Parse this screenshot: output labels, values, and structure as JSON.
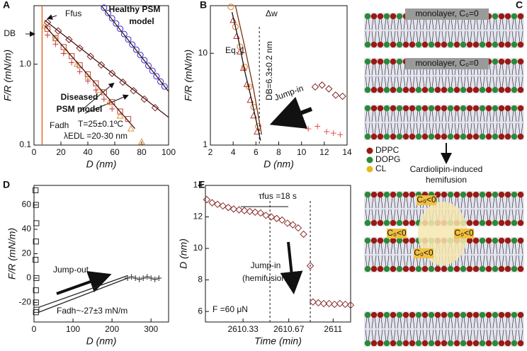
{
  "chart_data": [
    {
      "type": "scatter",
      "label": "A",
      "xlabel": "D (nm)",
      "ylabel": "F/R (mN/m)",
      "ylog": true,
      "xlim": [
        0,
        100
      ],
      "xticks": [
        0,
        20,
        40,
        60,
        80,
        100
      ],
      "ylim": [
        0.1,
        5.3
      ],
      "yticks": [
        {
          "value": 0.1,
          "label": "0.1"
        },
        {
          "value": 1,
          "label": "1.0"
        }
      ],
      "vlines": [],
      "annotations": [
        "Ffus",
        "DB",
        "Healthy PSM",
        "model",
        "Diseased",
        "PSM model",
        "Fadh",
        "T=25±0.1ºC",
        "λEDL =20-30 nm"
      ],
      "series": [
        {
          "marker": "circle",
          "color": "#2a2ad0",
          "x": [
            52,
            55,
            58,
            61,
            64,
            67,
            70,
            73,
            76,
            79,
            82,
            85,
            88,
            91,
            94,
            97
          ],
          "values": [
            5.0,
            4.3,
            3.7,
            3.19,
            2.74,
            2.36,
            2.03,
            1.75,
            1.51,
            1.3,
            1.12,
            0.96,
            0.83,
            0.71,
            0.61,
            0.53
          ]
        },
        {
          "marker": "diamond",
          "color": "#7a2020",
          "x": [
            10,
            18,
            26,
            34,
            42,
            50,
            58,
            66,
            74,
            82,
            90
          ],
          "values": [
            3.29,
            2.58,
            2.02,
            1.58,
            1.25,
            0.98,
            0.77,
            0.6,
            0.47,
            0.37,
            0.29
          ]
        },
        {
          "marker": "square",
          "color": "#b8452a",
          "x": [
            10,
            16,
            22,
            28,
            34,
            40,
            46,
            52,
            58,
            64,
            70
          ],
          "values": [
            2.74,
            2.11,
            1.63,
            1.26,
            0.97,
            0.75,
            0.58,
            0.45,
            0.34,
            0.26,
            0.21
          ]
        },
        {
          "marker": "triangle",
          "color": "#e0903a",
          "x": [
            8,
            16,
            24,
            32,
            40,
            48,
            56,
            64,
            72,
            80
          ],
          "values": [
            3.0,
            2.08,
            1.45,
            1.01,
            0.7,
            0.48,
            0.34,
            0.23,
            0.16,
            0.11
          ]
        },
        {
          "marker": "cross",
          "color": "#c83a3a",
          "x": [
            10,
            16,
            22,
            28,
            34,
            40,
            46,
            52,
            58
          ],
          "values": [
            2.29,
            1.77,
            1.36,
            1.05,
            0.81,
            0.62,
            0.48,
            0.37,
            0.28
          ]
        },
        {
          "style": "line",
          "color": "#4a1010",
          "x": [
            8,
            100
          ],
          "values": [
            3.5,
            0.22
          ]
        },
        {
          "style": "line",
          "color": "#4a1010",
          "x": [
            8,
            75
          ],
          "values": [
            3.0,
            0.16
          ]
        },
        {
          "style": "line",
          "color": "#4a1010",
          "x": [
            50,
            100
          ],
          "values": [
            5.3,
            0.46
          ]
        },
        {
          "style": "line",
          "color": "#e05a10",
          "x": [
            6,
            6
          ],
          "values": [
            5.3,
            0.1
          ]
        }
      ]
    },
    {
      "type": "scatter",
      "label": "B",
      "xlabel": "D (nm)",
      "ylabel": "F/R (mN/m)",
      "ylog": true,
      "xlim": [
        2,
        14
      ],
      "xticks": [
        2,
        4,
        6,
        8,
        10,
        12,
        14
      ],
      "ylim": [
        1,
        33
      ],
      "yticks": [
        1,
        10
      ],
      "vlines": [
        6.3
      ],
      "annotations": [
        "Δw",
        "Eq. 1",
        "DB=6.3±0.2 nm",
        "Jump-in"
      ],
      "series": [
        {
          "marker": "triangle",
          "color": "#c03030",
          "x": [
            4.0,
            4.3,
            4.6,
            4.9,
            5.2,
            5.5,
            5.8,
            6.1
          ],
          "values": [
            22.97,
            15.4,
            10.4,
            6.9,
            4.6,
            3.1,
            2.1,
            1.4
          ]
        },
        {
          "marker": "circle",
          "color": "#e07a20",
          "x": [
            3.8,
            4.2,
            4.6,
            5.0,
            5.4,
            5.8,
            6.2
          ],
          "values": [
            32,
            19.4,
            11.8,
            7.1,
            4.3,
            2.6,
            1.6
          ]
        },
        {
          "marker": "diamond",
          "color": "#7a2020",
          "x": [
            11.2,
            11.8,
            12.4,
            13.0,
            13.6
          ],
          "values": [
            4.3,
            4.5,
            4.1,
            3.5,
            3.4
          ]
        },
        {
          "marker": "cross",
          "color": "#e05050",
          "x": [
            10.6,
            11.4,
            12.2,
            12.8,
            13.4
          ],
          "values": [
            1.5,
            1.6,
            1.4,
            1.35,
            1.3
          ]
        },
        {
          "style": "line",
          "color": "#111111",
          "x": [
            3.9,
            4.5,
            5.0,
            5.5,
            6.0,
            6.4
          ],
          "values": [
            28.1,
            13.4,
            6.5,
            3.6,
            1.9,
            1.12
          ]
        },
        {
          "style": "line",
          "color": "#7a3010",
          "x": [
            4.2,
            5.0,
            5.8,
            6.5
          ],
          "values": [
            33,
            12,
            4,
            1.3
          ]
        }
      ]
    },
    {
      "type": "scatter",
      "label": "D",
      "xlabel": "D (nm)",
      "ylabel": "F/R (mN/m)",
      "xlim": [
        0,
        345
      ],
      "xticks": [
        0,
        100,
        200,
        300
      ],
      "ylim": [
        -36,
        76
      ],
      "yticks": [
        -20,
        0,
        20,
        40,
        60
      ],
      "vlines": [],
      "annotations": [
        "Jump-out",
        "Fadh~-27±3 mN/m"
      ],
      "series": [
        {
          "marker": "square",
          "color": "#222222",
          "x": [
            4,
            5,
            6,
            5,
            4,
            6,
            5,
            5,
            6,
            5
          ],
          "values": [
            72,
            60,
            45,
            30,
            15,
            0,
            -10,
            -20,
            -26,
            -28
          ]
        },
        {
          "style": "line",
          "color": "#222222",
          "x": [
            12,
            240
          ],
          "values": [
            -28,
            0
          ]
        },
        {
          "style": "line",
          "color": "#222222",
          "x": [
            12,
            240
          ],
          "values": [
            -24,
            2
          ]
        },
        {
          "marker": "cross",
          "color": "#222222",
          "x": [
            240,
            250,
            260,
            270,
            280,
            290,
            300,
            310,
            320
          ],
          "values": [
            0,
            1,
            0,
            -1,
            0,
            1,
            0,
            -1,
            0
          ]
        }
      ]
    },
    {
      "type": "scatter",
      "label": "E",
      "xlabel": "Time (min)",
      "ylabel": "D (nm)",
      "xlim": [
        2610.05,
        2611.13
      ],
      "xticks": [
        2610.33,
        2610.67,
        2611
      ],
      "ylim": [
        5.33,
        14
      ],
      "yticks": [
        6,
        8,
        10,
        12,
        14
      ],
      "vlines": [
        2610.53,
        2610.83
      ],
      "annotations": [
        "τfus =18 s",
        "Jump-in",
        "(hemifusion)",
        "F =60 μN"
      ],
      "series": [
        {
          "marker": "diamond",
          "color": "#8b2c2c",
          "x": [
            2610.06,
            2610.1,
            2610.14,
            2610.18,
            2610.22,
            2610.26,
            2610.3,
            2610.34,
            2610.38,
            2610.42,
            2610.46,
            2610.5,
            2610.54,
            2610.58,
            2610.62,
            2610.66,
            2610.7,
            2610.74,
            2610.78,
            2610.83,
            2610.85,
            2610.89,
            2610.93,
            2610.97,
            2611.01,
            2611.05,
            2611.09,
            2611.13
          ],
          "values": [
            13.1,
            12.9,
            12.8,
            12.7,
            12.6,
            12.5,
            12.45,
            12.4,
            12.35,
            12.3,
            12.25,
            12.1,
            12.0,
            11.9,
            11.8,
            11.6,
            11.5,
            11.3,
            10.9,
            8.9,
            6.6,
            6.55,
            6.5,
            6.5,
            6.45,
            6.5,
            6.45,
            6.4
          ]
        }
      ]
    }
  ],
  "diagram": {
    "label": "C",
    "monolayer_labels": [
      "monolayer, C₀=0",
      "monolayer, C₀=0"
    ],
    "legend": [
      "DPPC",
      "DOPG",
      "CL"
    ],
    "caption": [
      "Cardiolipin-induced",
      "hemifusion"
    ],
    "curvature_labels": [
      "C₀<0",
      "C₀<0",
      "C₀<0",
      "C₀<0"
    ]
  }
}
